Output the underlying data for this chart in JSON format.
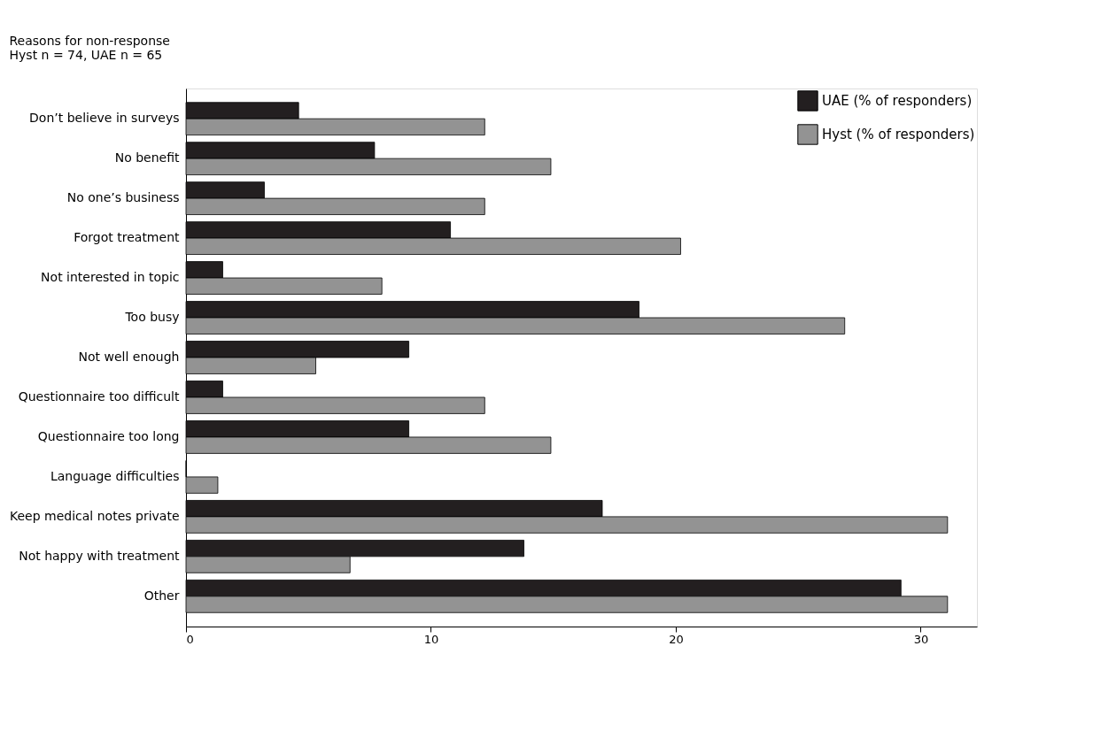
{
  "chart_data": {
    "type": "bar",
    "orientation": "horizontal",
    "title": "Reasons for non-response",
    "subtitle": "Hyst n = 74, UAE n = 65",
    "categories": [
      "Don’t believe in surveys",
      "No benefit",
      "No one’s business",
      "Forgot treatment",
      "Not interested in topic",
      "Too busy",
      "Not well enough",
      "Questionnaire too difficult",
      "Questionnaire too long",
      "Language difficulties",
      "Keep medical notes private",
      "Not happy with treatment",
      "Other"
    ],
    "series": [
      {
        "name": "UAE (% of responders)",
        "color": "#231f20",
        "values": [
          4.6,
          7.7,
          3.2,
          10.8,
          1.5,
          18.5,
          9.1,
          1.5,
          9.1,
          0,
          17.0,
          13.8,
          29.2
        ]
      },
      {
        "name": "Hyst (% of responders)",
        "color": "#939393",
        "values": [
          12.2,
          14.9,
          12.2,
          20.2,
          8.0,
          26.9,
          5.3,
          12.2,
          14.9,
          1.3,
          31.1,
          6.7,
          31.1
        ]
      }
    ],
    "xlim": [
      0,
      32.3
    ],
    "xticks": [
      0,
      10,
      20,
      30
    ],
    "grid": false,
    "legend": "top right"
  }
}
